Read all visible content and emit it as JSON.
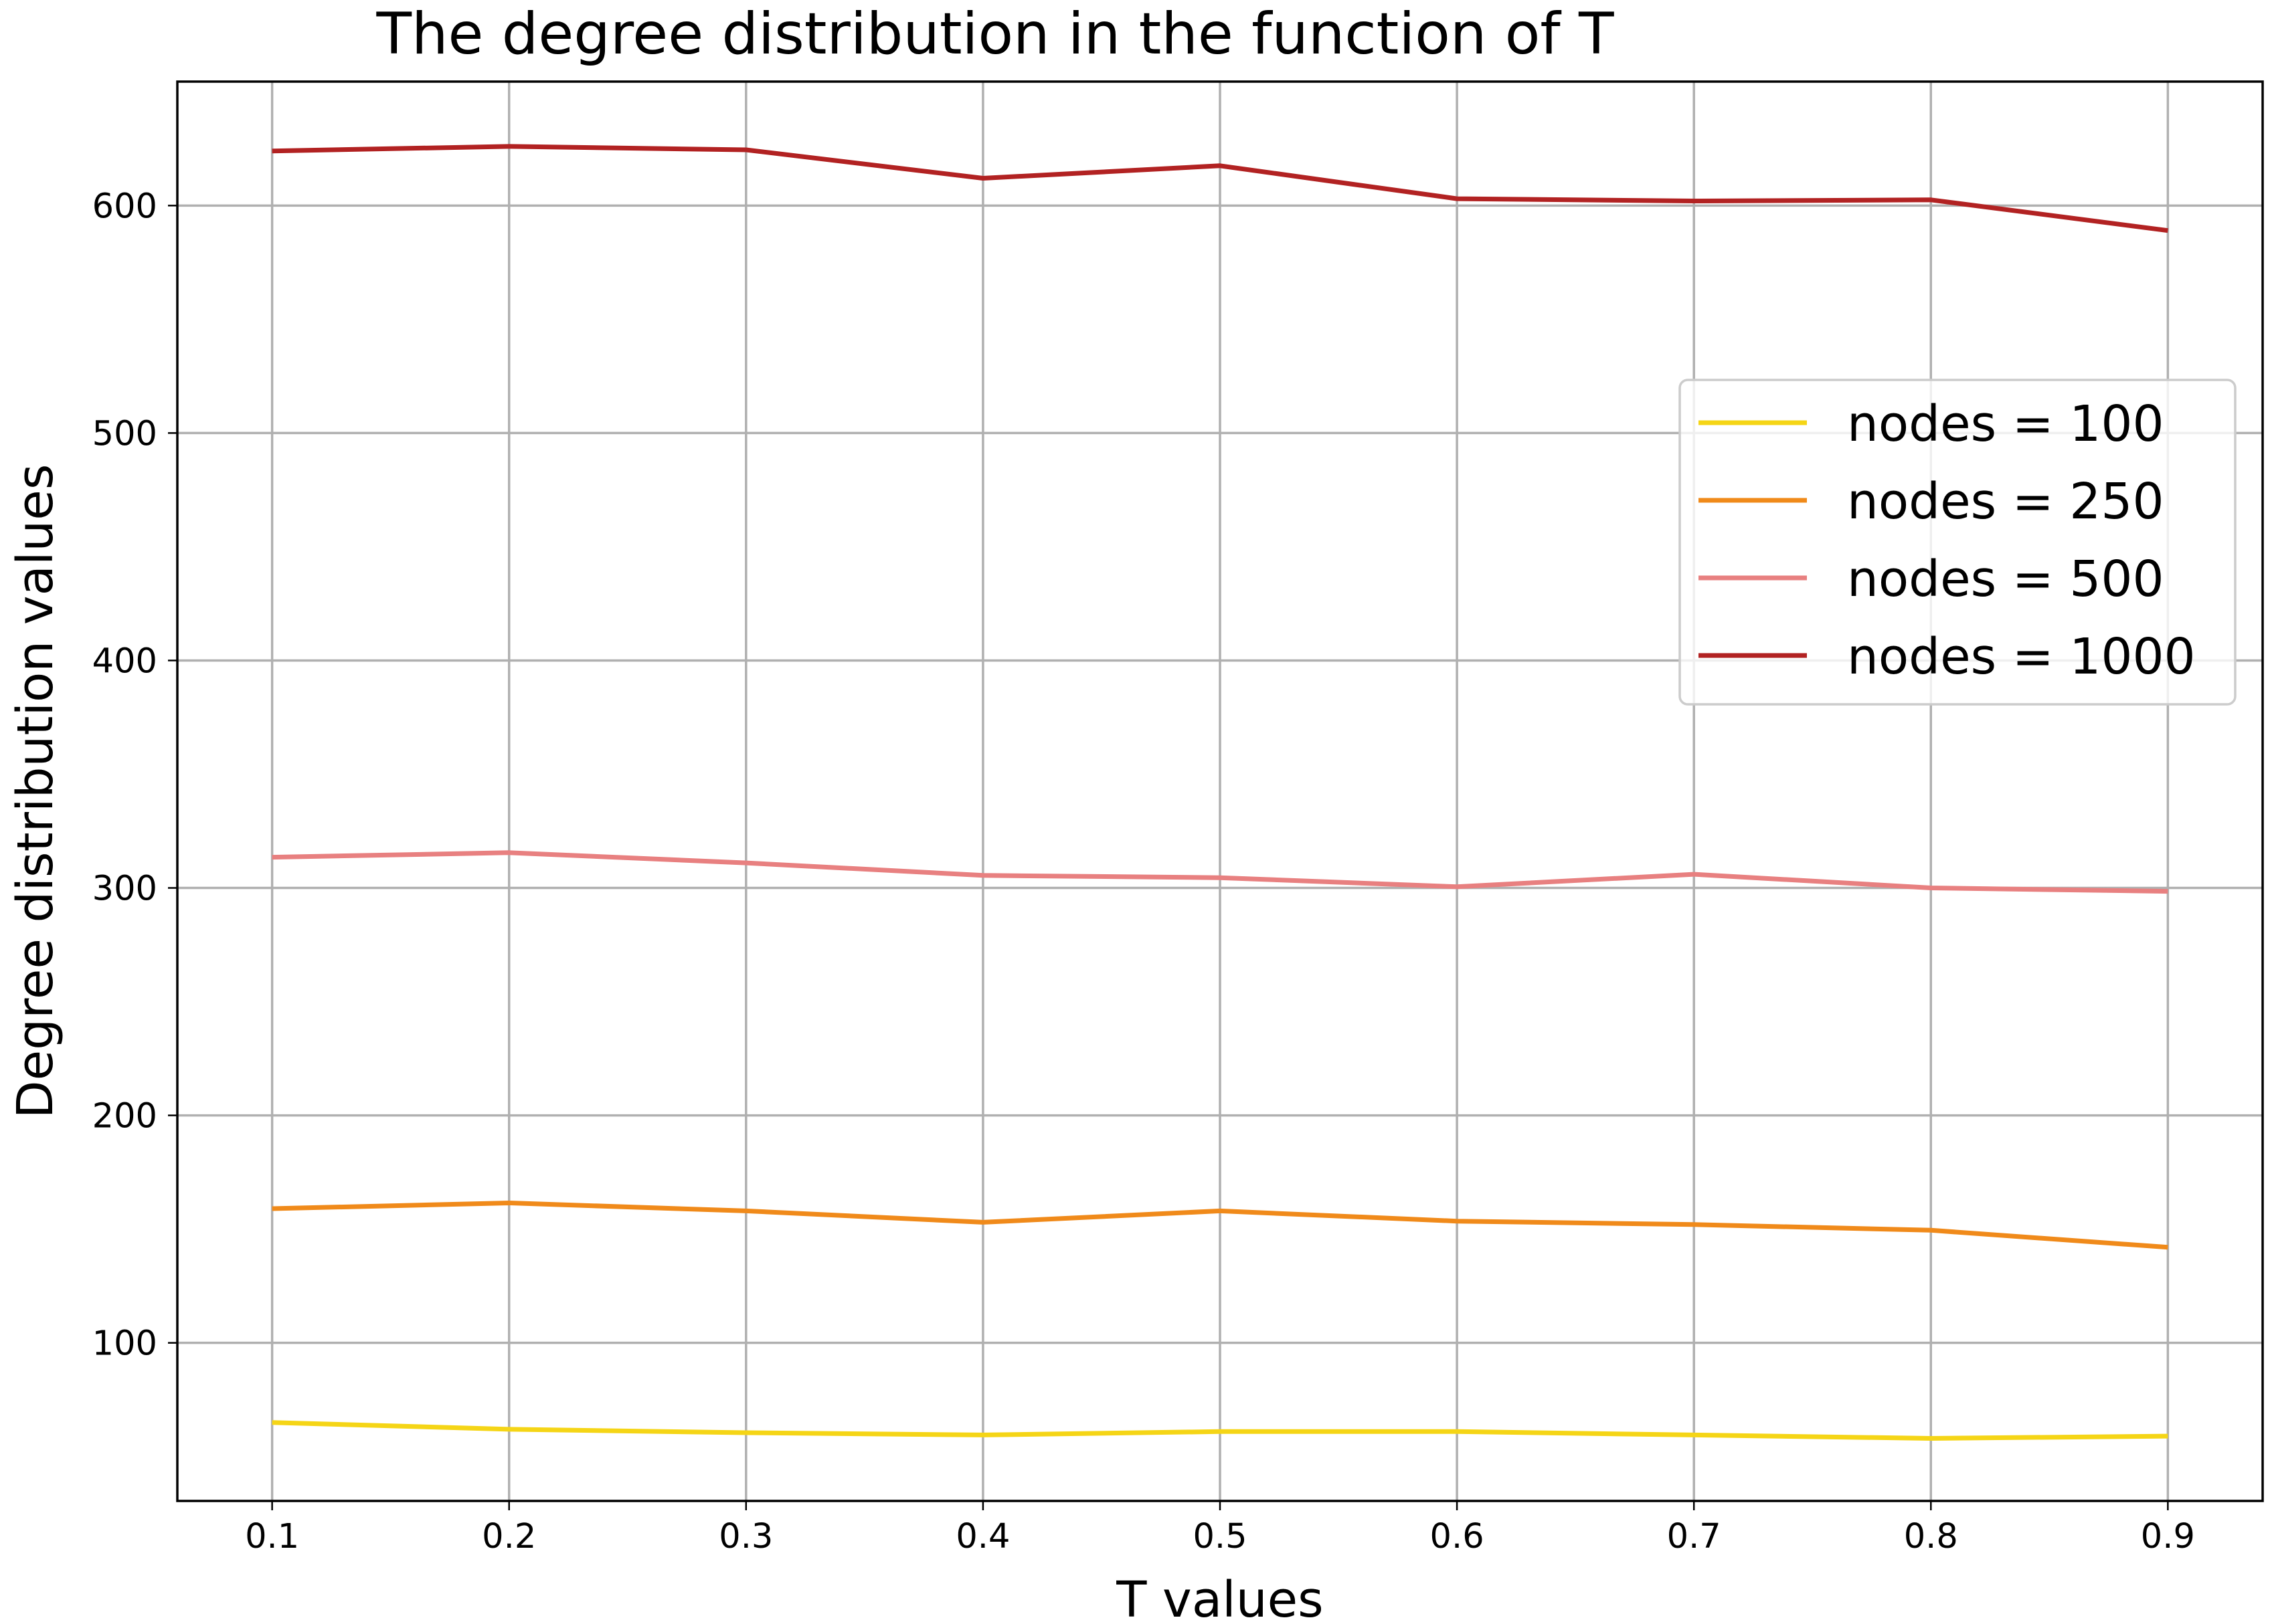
{
  "chart_data": {
    "type": "line",
    "title": "The degree distribution in the function of T",
    "xlabel": "T values",
    "ylabel": "Degree distribution values",
    "x": [
      0.1,
      0.2,
      0.3,
      0.4,
      0.5,
      0.6,
      0.7,
      0.8,
      0.9
    ],
    "x_tick_labels": [
      "0.1",
      "0.2",
      "0.3",
      "0.4",
      "0.5",
      "0.6",
      "0.7",
      "0.8",
      "0.9"
    ],
    "xlim": [
      0.06,
      0.94
    ],
    "y_ticks": [
      100,
      200,
      300,
      400,
      500,
      600
    ],
    "y_tick_labels": [
      "100",
      "200",
      "300",
      "400",
      "500",
      "600"
    ],
    "ylim": [
      30.5,
      654.5
    ],
    "grid": true,
    "legend_position": "upper right",
    "series": [
      {
        "name": "nodes = 100",
        "color": "#f5d516",
        "values": [
          65,
          62,
          60.5,
          59.5,
          61,
          61,
          59.5,
          58,
          59
        ]
      },
      {
        "name": "nodes = 250",
        "color": "#f08a1a",
        "values": [
          159,
          161.5,
          158,
          153,
          158,
          153.5,
          152,
          149.5,
          142
        ]
      },
      {
        "name": "nodes = 500",
        "color": "#e88080",
        "values": [
          313.5,
          315.5,
          311,
          305.5,
          304.5,
          300.5,
          306,
          300,
          298.5
        ]
      },
      {
        "name": "nodes = 1000",
        "color": "#b22222",
        "values": [
          624,
          626,
          624.5,
          612,
          617.5,
          603,
          602,
          602.5,
          589
        ]
      }
    ]
  }
}
